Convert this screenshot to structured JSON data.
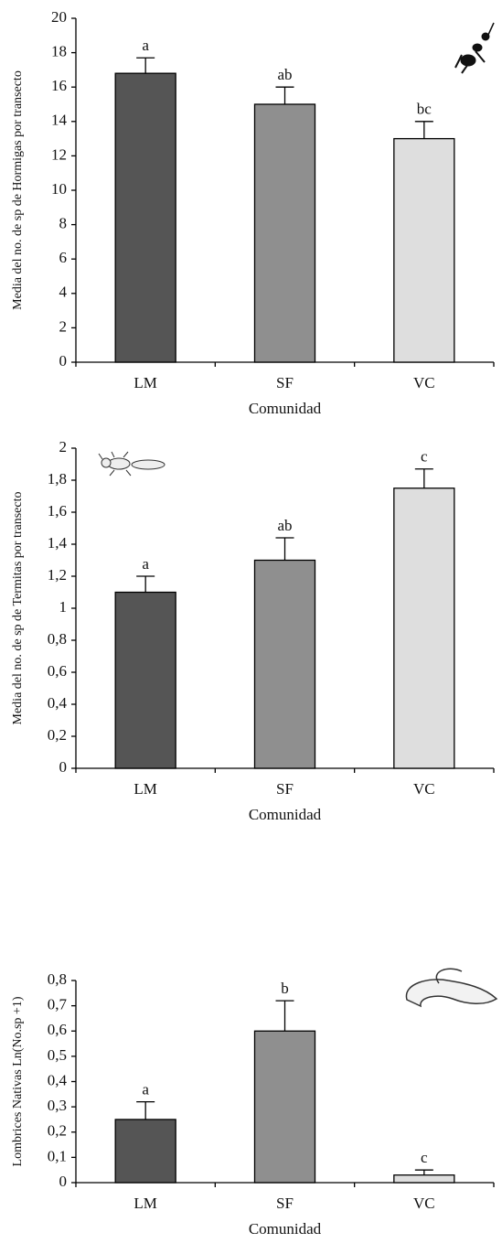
{
  "chart_data": [
    {
      "type": "bar",
      "y_label": "Media del no. de sp de Hormigas por transecto",
      "x_label": "Comunidad",
      "categories": [
        "LM",
        "SF",
        "VC"
      ],
      "values": [
        16.8,
        15,
        13
      ],
      "errors": [
        0.9,
        1,
        1
      ],
      "letters": [
        "a",
        "ab",
        "bc"
      ],
      "colors": [
        "#555555",
        "#8f8f8f",
        "#dedede"
      ],
      "ylim": [
        0,
        20
      ],
      "yticks": [
        0,
        2,
        4,
        6,
        8,
        10,
        12,
        14,
        16,
        18,
        20
      ]
    },
    {
      "type": "bar",
      "y_label": "Media del no. de sp de Termitas por transecto",
      "x_label": "Comunidad",
      "categories": [
        "LM",
        "SF",
        "VC"
      ],
      "values": [
        1.1,
        1.3,
        1.75
      ],
      "errors": [
        0.1,
        0.14,
        0.12
      ],
      "letters": [
        "a",
        "ab",
        "c"
      ],
      "colors": [
        "#555555",
        "#8f8f8f",
        "#dedede"
      ],
      "ylim": [
        0,
        2
      ],
      "yticks": [
        0,
        {
          "value": 0.2,
          "label": "0,2"
        },
        {
          "value": 0.4,
          "label": "0,4"
        },
        {
          "value": 0.6,
          "label": "0,6"
        },
        {
          "value": 0.8,
          "label": "0,8"
        },
        1,
        {
          "value": 1.2,
          "label": "1,2"
        },
        {
          "value": 1.4,
          "label": "1,4"
        },
        {
          "value": 1.6,
          "label": "1,6"
        },
        {
          "value": 1.8,
          "label": "1,8"
        },
        2
      ]
    },
    {
      "type": "bar",
      "y_label": "Lombrices Nativas Ln(No.sp +1)",
      "x_label": "Comunidad",
      "categories": [
        "LM",
        "SF",
        "VC"
      ],
      "values": [
        0.25,
        0.6,
        0.03
      ],
      "errors": [
        0.07,
        0.12,
        0.02
      ],
      "letters": [
        "a",
        "b",
        "c"
      ],
      "colors": [
        "#555555",
        "#8f8f8f",
        "#dedede"
      ],
      "ylim": [
        0,
        0.8
      ],
      "yticks": [
        0,
        {
          "value": 0.1,
          "label": "0,1"
        },
        {
          "value": 0.2,
          "label": "0,2"
        },
        {
          "value": 0.3,
          "label": "0,3"
        },
        {
          "value": 0.4,
          "label": "0,4"
        },
        {
          "value": 0.5,
          "label": "0,5"
        },
        {
          "value": 0.6,
          "label": "0,6"
        },
        {
          "value": 0.7,
          "label": "0,7"
        },
        {
          "value": 0.8,
          "label": "0,8"
        }
      ]
    }
  ]
}
